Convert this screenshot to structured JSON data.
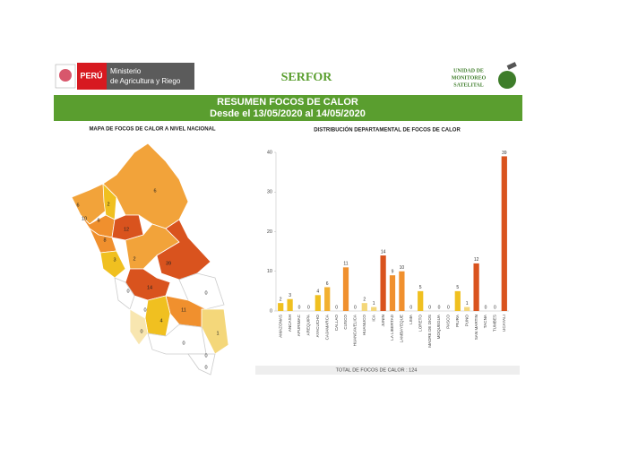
{
  "header": {
    "country": "PERÚ",
    "ministry_line1": "Ministerio",
    "ministry_line2": "de Agricultura y Riego",
    "serfor": "SERFOR",
    "unit_line1": "UNIDAD DE",
    "unit_line2": "MONITOREO",
    "unit_line3": "SATELITAL",
    "title": "RESUMEN FOCOS DE CALOR",
    "subtitle": "Desde el 13/05/2020 al 14/05/2020"
  },
  "map": {
    "title": "MAPA DE FOCOS DE CALOR A NIVEL NACIONAL",
    "labels": [
      6,
      2,
      6,
      10,
      6,
      12,
      8,
      3,
      2,
      39,
      14,
      0,
      0,
      11,
      4,
      0,
      0,
      1,
      0,
      0,
      0
    ]
  },
  "chart_data": {
    "type": "bar",
    "title": "DISTRIBUCIÓN DEPARTAMENTAL DE FOCOS DE CALOR",
    "categories": [
      "AMAZONAS",
      "ANCASH",
      "APURIMAC",
      "AREQUIPA",
      "AYACUCHO",
      "CAJAMARCA",
      "CALLAO",
      "CUSCO",
      "HUANCAVELICA",
      "HUANUCO",
      "ICA",
      "JUNIN",
      "LA LIBERTAD",
      "LAMBAYEQUE",
      "LIMA",
      "LORETO",
      "MADRE DE DIOS",
      "MOQUEGUA",
      "PASCO",
      "PIURA",
      "PUNO",
      "SAN MARTIN",
      "TACNA",
      "TUMBES",
      "UCAYALI"
    ],
    "values": [
      2,
      3,
      0,
      0,
      4,
      6,
      0,
      11,
      0,
      2,
      1,
      14,
      9,
      10,
      0,
      5,
      0,
      0,
      0,
      5,
      1,
      12,
      0,
      0,
      39
    ],
    "colors": [
      "#f0c020",
      "#f0c020",
      "#f0c020",
      "#f0c020",
      "#f0c020",
      "#f2b030",
      "#f0c020",
      "#f0902e",
      "#f0c020",
      "#f4d77a",
      "#f4d77a",
      "#d9531e",
      "#f0902e",
      "#f0902e",
      "#f0c020",
      "#f0c020",
      "#f0c020",
      "#f0c020",
      "#f0c020",
      "#f0c020",
      "#f4d77a",
      "#d9531e",
      "#f0c020",
      "#f0c020",
      "#d9531e"
    ],
    "ylim": [
      0,
      40
    ],
    "yticks": [
      0,
      10,
      20,
      30,
      40
    ],
    "grid": false,
    "total_label": "TOTAL DE FOCOS DE CALOR : 124"
  }
}
